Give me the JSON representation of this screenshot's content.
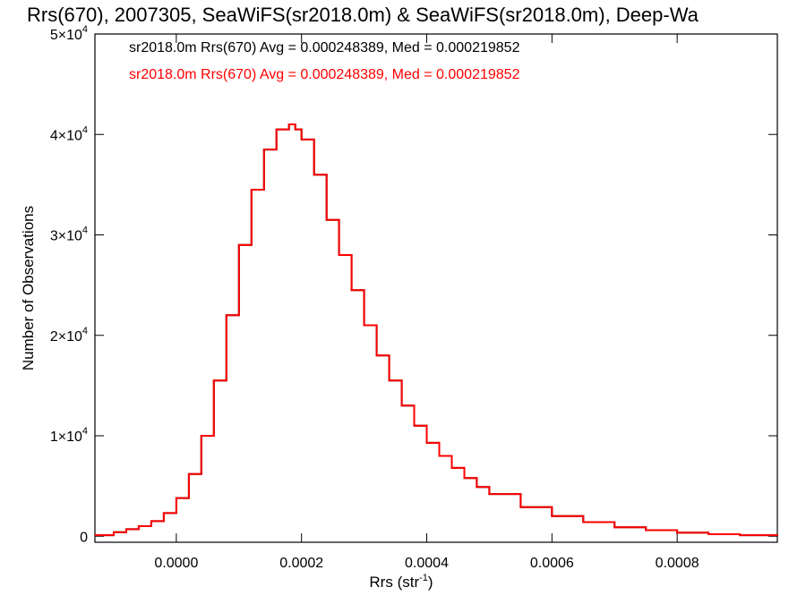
{
  "chart_data": {
    "type": "histogram",
    "title": "Rrs(670), 2007305, SeaWiFS(sr2018.0m) & SeaWiFS(sr2018.0m), Deep-Wa",
    "xlabel": "Rrs (str",
    "xlabel_sup": "-1",
    "xlabel_tail": ")",
    "ylabel": "Number of Observations",
    "xlim": [
      -0.00013,
      0.00096
    ],
    "ylim": [
      -600,
      50000
    ],
    "x_ticks": [
      {
        "value": 0.0,
        "label": "0.0000"
      },
      {
        "value": 0.0002,
        "label": "0.0002"
      },
      {
        "value": 0.0004,
        "label": "0.0004"
      },
      {
        "value": 0.0006,
        "label": "0.0006"
      },
      {
        "value": 0.0008,
        "label": "0.0008"
      }
    ],
    "y_ticks": [
      {
        "value": 0,
        "label": "0",
        "sup": ""
      },
      {
        "value": 10000,
        "label": "1×10",
        "sup": "4"
      },
      {
        "value": 20000,
        "label": "2×10",
        "sup": "4"
      },
      {
        "value": 30000,
        "label": "3×10",
        "sup": "4"
      },
      {
        "value": 40000,
        "label": "4×10",
        "sup": "4"
      },
      {
        "value": 50000,
        "label": "5×10",
        "sup": "4"
      }
    ],
    "grid": false,
    "legend_position": "top-left",
    "series": [
      {
        "name": "sr2018.0m Rrs(670) Avg = 0.000248389, Med = 0.000219852",
        "color": "#000000",
        "x": [
          -0.00013,
          -0.0001,
          -8e-05,
          -6e-05,
          -4e-05,
          -2e-05,
          0.0,
          2e-05,
          4e-05,
          6e-05,
          8e-05,
          0.0001,
          0.00012,
          0.00014,
          0.00016,
          0.00018,
          0.00019,
          0.0002,
          0.00022,
          0.00024,
          0.00026,
          0.00028,
          0.0003,
          0.00032,
          0.00034,
          0.00036,
          0.00038,
          0.0004,
          0.00042,
          0.00044,
          0.00046,
          0.00048,
          0.0005,
          0.00055,
          0.0006,
          0.00065,
          0.0007,
          0.00075,
          0.0008,
          0.00085,
          0.0009,
          0.00096
        ],
        "y": [
          100,
          400,
          700,
          1000,
          1500,
          2300,
          3800,
          6200,
          10000,
          15500,
          22000,
          29000,
          34500,
          38500,
          40500,
          41000,
          40500,
          39500,
          36000,
          31500,
          28000,
          24500,
          21000,
          18000,
          15500,
          13000,
          11000,
          9300,
          8000,
          6800,
          5800,
          4900,
          4200,
          2900,
          2000,
          1400,
          900,
          600,
          350,
          200,
          100,
          50
        ]
      },
      {
        "name": "sr2018.0m Rrs(670) Avg = 0.000248389, Med = 0.000219852",
        "color": "#ff0000",
        "x": [
          -0.00013,
          -0.0001,
          -8e-05,
          -6e-05,
          -4e-05,
          -2e-05,
          0.0,
          2e-05,
          4e-05,
          6e-05,
          8e-05,
          0.0001,
          0.00012,
          0.00014,
          0.00016,
          0.00018,
          0.00019,
          0.0002,
          0.00022,
          0.00024,
          0.00026,
          0.00028,
          0.0003,
          0.00032,
          0.00034,
          0.00036,
          0.00038,
          0.0004,
          0.00042,
          0.00044,
          0.00046,
          0.00048,
          0.0005,
          0.00055,
          0.0006,
          0.00065,
          0.0007,
          0.00075,
          0.0008,
          0.00085,
          0.0009,
          0.00096
        ],
        "y": [
          100,
          400,
          700,
          1000,
          1500,
          2300,
          3800,
          6200,
          10000,
          15500,
          22000,
          29000,
          34500,
          38500,
          40500,
          41000,
          40500,
          39500,
          36000,
          31500,
          28000,
          24500,
          21000,
          18000,
          15500,
          13000,
          11000,
          9300,
          8000,
          6800,
          5800,
          4900,
          4200,
          2900,
          2000,
          1400,
          900,
          600,
          350,
          200,
          100,
          50
        ]
      }
    ]
  }
}
